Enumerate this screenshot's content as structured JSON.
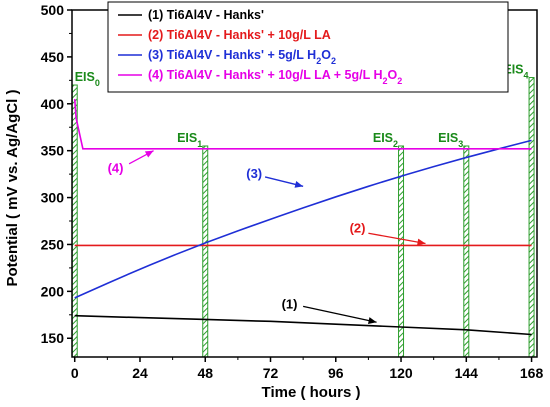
{
  "chart_data": {
    "type": "line",
    "xlabel": "Time ( hours )",
    "ylabel": "Potential ( mV vs. Ag/AgCl )",
    "xlim": [
      -1,
      170
    ],
    "ylim": [
      130,
      500
    ],
    "xticks": [
      0,
      24,
      48,
      72,
      96,
      120,
      144,
      168
    ],
    "yticks": [
      150,
      200,
      250,
      300,
      350,
      400,
      450,
      500
    ],
    "legend_position": "top-center",
    "grid": false,
    "series": [
      {
        "name": "(1) Ti6Al4V - Hanks'",
        "label_html": "(1) Ti6Al4V - Hanks'",
        "color": "#000000",
        "annotation": "(1)",
        "x": [
          0,
          24,
          48,
          72,
          96,
          120,
          144,
          168
        ],
        "y": [
          174,
          172,
          170,
          168,
          165,
          162,
          159,
          154
        ]
      },
      {
        "name": "(2) Ti6Al4V - Hanks' + 10g/L LA",
        "label_html": "(2) Ti6Al4V - Hanks' + 10g/L LA",
        "color": "#e41a1c",
        "annotation": "(2)",
        "x": [
          0,
          168
        ],
        "y": [
          249,
          249
        ]
      },
      {
        "name": "(3) Ti6Al4V - Hanks' + 5g/L H2O2",
        "label_html": "(3) Ti6Al4V - Hanks' + 5g/L H<tspan baseline-shift='sub' font-size='9'>2</tspan>O<tspan baseline-shift='sub' font-size='9'>2</tspan>",
        "color": "#1f2fd6",
        "annotation": "(3)",
        "x": [
          0,
          24,
          48,
          72,
          96,
          120,
          144,
          168
        ],
        "y": [
          193,
          224,
          252,
          277,
          301,
          323,
          343,
          361
        ]
      },
      {
        "name": "(4) Ti6Al4V - Hanks' + 10g/L LA + 5g/L H2O2",
        "label_html": "(4) Ti6Al4V - Hanks' + 10g/L LA + 5g/L H<tspan baseline-shift='sub' font-size='9'>2</tspan>O<tspan baseline-shift='sub' font-size='9'>2</tspan>",
        "color": "#e600e6",
        "annotation": "(4)",
        "x": [
          0,
          0.5,
          3,
          168
        ],
        "y": [
          405,
          385,
          352,
          352
        ]
      }
    ],
    "eis_markers": [
      {
        "label": "EIS",
        "sub": "0",
        "x": 0,
        "top": 420
      },
      {
        "label": "EIS",
        "sub": "1",
        "x": 48,
        "top": 355
      },
      {
        "label": "EIS",
        "sub": "2",
        "x": 120,
        "top": 355
      },
      {
        "label": "EIS",
        "sub": "3",
        "x": 144,
        "top": 355
      },
      {
        "label": "EIS",
        "sub": "4",
        "x": 168,
        "top": 428
      }
    ]
  }
}
